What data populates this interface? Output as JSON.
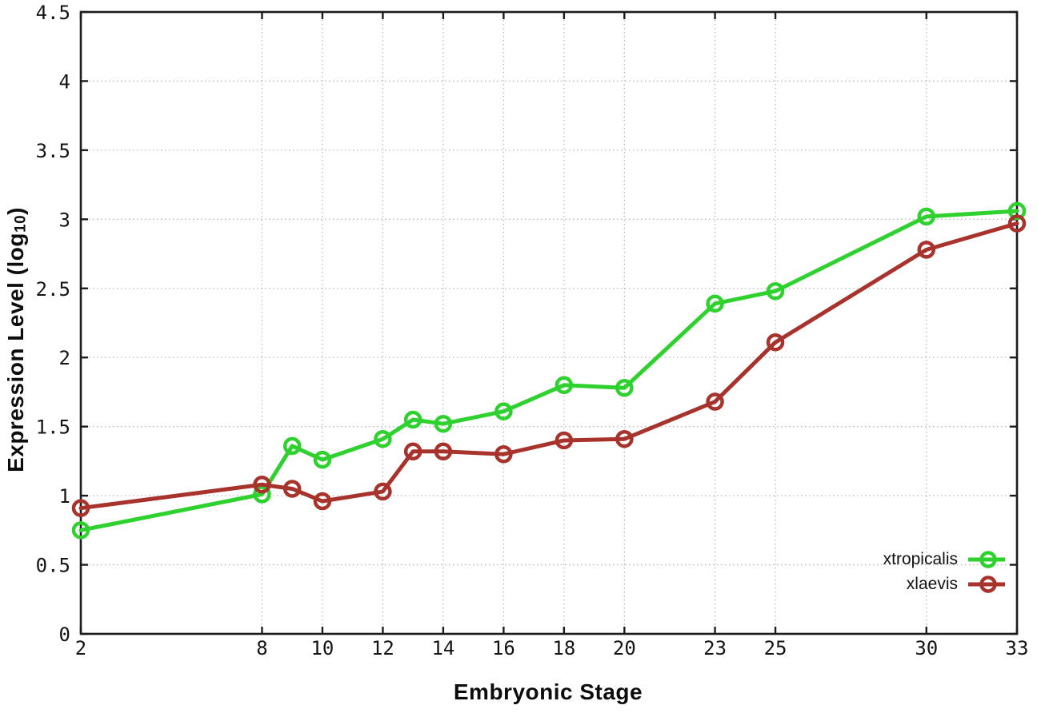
{
  "figure": {
    "background_color": "#ffffff",
    "axis_color": "#1c1c1c",
    "grid_color": "#b9b9b9"
  },
  "axes": {
    "ylabel_prefix": "Expression Level (log",
    "ylabel_sub": "10",
    "ylabel_suffix": ")",
    "xlabel": "Embryonic Stage"
  },
  "chart_data": {
    "type": "line",
    "title": "",
    "xlabel": "Embryonic Stage",
    "ylabel": "Expression Level (log10)",
    "xlim": [
      2,
      33
    ],
    "ylim": [
      0,
      4.5
    ],
    "xticks": [
      2,
      8,
      10,
      12,
      14,
      16,
      18,
      20,
      23,
      25,
      30,
      33
    ],
    "yticks": [
      0,
      0.5,
      1,
      1.5,
      2,
      2.5,
      3,
      3.5,
      4,
      4.5
    ],
    "grid": true,
    "legend_position": "bottom-right",
    "marker": "open-circle",
    "x": [
      2,
      8,
      9,
      10,
      12,
      13,
      14,
      16,
      18,
      20,
      23,
      25,
      30,
      33
    ],
    "series": [
      {
        "name": "xtropicalis",
        "color": "#2ed12e",
        "values": [
          0.75,
          1.01,
          1.36,
          1.26,
          1.41,
          1.55,
          1.52,
          1.61,
          1.8,
          1.78,
          2.39,
          2.48,
          3.02,
          3.06
        ]
      },
      {
        "name": "xlaevis",
        "color": "#a8322c",
        "values": [
          0.91,
          1.08,
          1.05,
          0.96,
          1.03,
          1.32,
          1.32,
          1.3,
          1.4,
          1.41,
          1.68,
          2.11,
          2.78,
          2.97
        ]
      }
    ]
  }
}
